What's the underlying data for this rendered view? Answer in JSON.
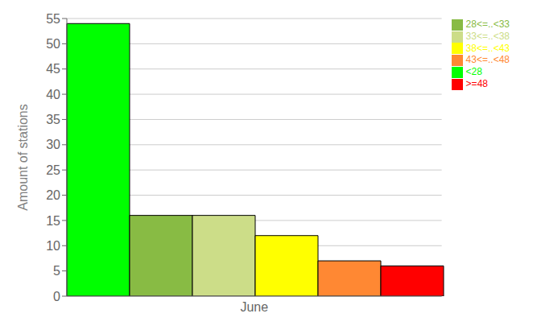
{
  "chart_data": {
    "type": "bar",
    "y_label": "Amount of stations",
    "categories": [
      "June"
    ],
    "series": [
      {
        "name": "<28",
        "color": "#00ff00",
        "values": [
          54
        ]
      },
      {
        "name": "28<=..<33",
        "color": "#88bb44",
        "values": [
          16
        ]
      },
      {
        "name": "33<=..<38",
        "color": "#ccdd88",
        "values": [
          16
        ]
      },
      {
        "name": "38<=..<43",
        "color": "#ffff00",
        "values": [
          12
        ]
      },
      {
        "name": "43<=..<48",
        "color": "#ff8833",
        "values": [
          7
        ]
      },
      {
        "name": ">=48",
        "color": "#ff0000",
        "values": [
          6
        ]
      }
    ],
    "ylim": [
      0,
      55
    ],
    "yticks": [
      0,
      5,
      10,
      15,
      20,
      25,
      30,
      35,
      40,
      45,
      50,
      55
    ],
    "grid": true,
    "legend": "upper right"
  }
}
